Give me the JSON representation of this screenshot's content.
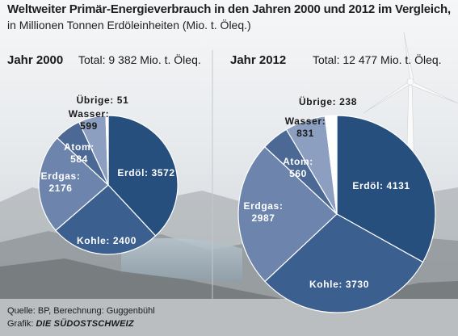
{
  "header": {
    "title": "Weltweiter Primär-Energieverbrauch in den Jahren 2000 und 2012 im Vergleich,",
    "subtitle": "in Millionen Tonnen Erdöleinheiten (Mio. t. Öleq.)"
  },
  "footer": {
    "source": "Quelle: BP, Berechnung: Guggenbühl",
    "credit_prefix": "Grafik:",
    "credit_brand": "DIE SÜDOSTSCHWEIZ"
  },
  "colors": {
    "erdoel": "#274f7e",
    "kohle": "#3b5f8f",
    "erdgas": "#6d85ad",
    "atom": "#4c6996",
    "wasser": "#8c9fc0",
    "uebrige": "#ffffff",
    "edge": "#ffffff"
  },
  "chart_data": [
    {
      "type": "pie",
      "title": "Jahr 2000",
      "total_label": "Total: 9 382 Mio. t. Öleq.",
      "slices": [
        {
          "label": "Erdöl",
          "value": 3572
        },
        {
          "label": "Kohle",
          "value": 2400
        },
        {
          "label": "Erdgas",
          "value": 2176
        },
        {
          "label": "Atom",
          "value": 584
        },
        {
          "label": "Wasser",
          "value": 599
        },
        {
          "label": "Übrige",
          "value": 51
        }
      ]
    },
    {
      "type": "pie",
      "title": "Jahr 2012",
      "total_label": "Total: 12 477 Mio. t. Öleq.",
      "slices": [
        {
          "label": "Erdöl",
          "value": 4131
        },
        {
          "label": "Kohle",
          "value": 3730
        },
        {
          "label": "Erdgas",
          "value": 2987
        },
        {
          "label": "Atom",
          "value": 560
        },
        {
          "label": "Wasser",
          "value": 831
        },
        {
          "label": "Übrige",
          "value": 238
        }
      ]
    }
  ]
}
